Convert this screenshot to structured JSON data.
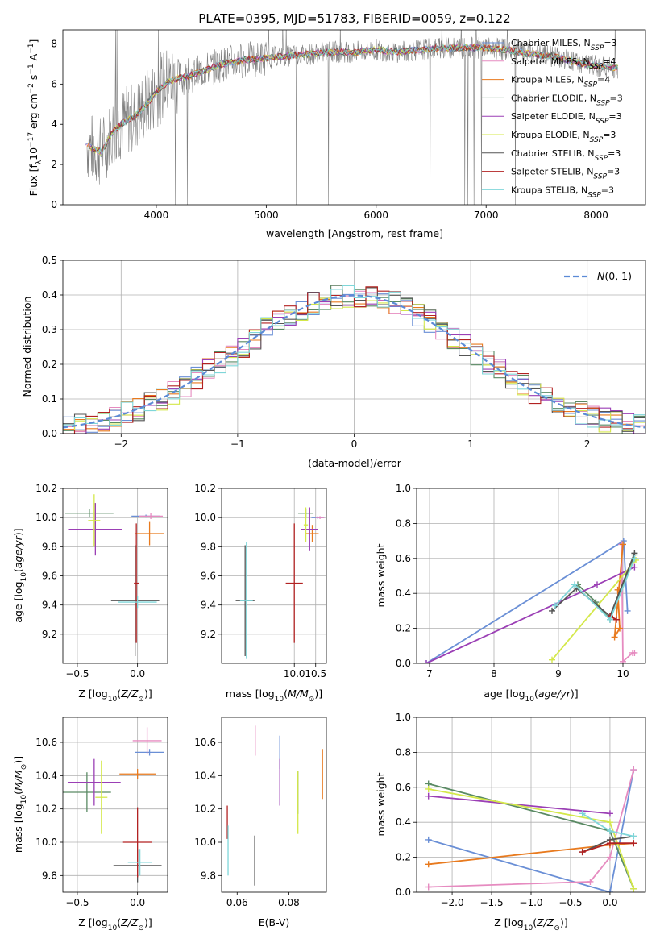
{
  "figure": {
    "title": "PLATE=0395, MJD=51783, FIBERID=0059, z=0.122"
  },
  "colors": {
    "Chabrier MILES": "#6a8fd6",
    "Salpeter MILES": "#e68bc0",
    "Kroupa MILES": "#e87a1e",
    "Chabrier ELODIE": "#5a8a64",
    "Salpeter ELODIE": "#9b3fb5",
    "Kroupa ELODIE": "#d4e84a",
    "Chabrier STELIB": "#555555",
    "Salpeter STELIB": "#b22222",
    "Kroupa STELIB": "#7fd6d9",
    "gaussian": "#5b8ad6",
    "data": "#808080"
  },
  "chart_data": [
    {
      "type": "line",
      "name": "spectrum",
      "xlabel": "wavelength [Angstrom, rest frame]",
      "ylabel": "Flux [f_λ 10^-17 erg cm^-2 s^-1 A^-1]",
      "xlim": [
        3150,
        8450
      ],
      "ylim": [
        0,
        8.7
      ],
      "xticks": [
        4000,
        5000,
        6000,
        7000,
        8000
      ],
      "yticks": [
        0,
        2,
        4,
        6,
        8
      ],
      "grid": false,
      "legend_position": "top-right",
      "continuum_x": [
        3350,
        3500,
        3600,
        3700,
        3800,
        3900,
        4000,
        4100,
        4200,
        4300,
        4400,
        4500,
        4600,
        4800,
        5000,
        5200,
        5400,
        5600,
        5800,
        6000,
        6200,
        6400,
        6600,
        6800,
        7000,
        7200,
        7400,
        7600,
        7800,
        8000,
        8200
      ],
      "continuum_y": [
        3.0,
        2.6,
        3.6,
        4.1,
        4.4,
        4.9,
        5.6,
        6.1,
        6.3,
        6.4,
        6.6,
        6.8,
        7.0,
        7.2,
        7.3,
        7.4,
        7.5,
        7.6,
        7.6,
        7.7,
        7.6,
        7.7,
        7.8,
        7.8,
        7.8,
        7.7,
        7.5,
        7.4,
        7.1,
        6.9,
        6.8
      ],
      "series": [
        {
          "name": "Chabrier MILES",
          "nssp": "3"
        },
        {
          "name": "Salpeter MILES",
          "nssp": "4"
        },
        {
          "name": "Kroupa MILES",
          "nssp": "4"
        },
        {
          "name": "Chabrier ELODIE",
          "nssp": "3"
        },
        {
          "name": "Salpeter ELODIE",
          "nssp": "3"
        },
        {
          "name": "Kroupa ELODIE",
          "nssp": "3"
        },
        {
          "name": "Chabrier STELIB",
          "nssp": "3"
        },
        {
          "name": "Salpeter STELIB",
          "nssp": "3"
        },
        {
          "name": "Kroupa STELIB",
          "nssp": "3"
        }
      ]
    },
    {
      "type": "histogram",
      "name": "residuals",
      "xlabel": "(data-model)/error",
      "ylabel": "Normed distribution",
      "xlim": [
        -2.5,
        2.5
      ],
      "ylim": [
        0,
        0.5
      ],
      "xticks": [
        -2,
        -1,
        0,
        1,
        2
      ],
      "yticks": [
        0.0,
        0.1,
        0.2,
        0.3,
        0.4,
        0.5
      ],
      "grid": true,
      "legend": "N(0,1)",
      "legend_position": "top-right",
      "bin_width": 0.1
    },
    {
      "type": "errorbar",
      "name": "age_vs_Z",
      "xlabel": "Z [log10(Z/Z⊙)]",
      "ylabel": "age [log10(age/yr)]",
      "xlim": [
        -0.62,
        0.25
      ],
      "ylim": [
        9.0,
        10.2
      ],
      "xticks": [
        -0.5,
        0.0
      ],
      "yticks": [
        9.2,
        9.4,
        9.6,
        9.8,
        10.0,
        10.2
      ],
      "points": [
        {
          "series": "Chabrier MILES",
          "x": 0.07,
          "y": 10.01,
          "xerr": 0.12,
          "yerr": 0.01
        },
        {
          "series": "Salpeter MILES",
          "x": 0.11,
          "y": 10.01,
          "xerr": 0.1,
          "yerr": 0.02
        },
        {
          "series": "Kroupa MILES",
          "x": 0.1,
          "y": 9.89,
          "xerr": 0.12,
          "yerr": 0.08
        },
        {
          "series": "Chabrier ELODIE",
          "x": -0.4,
          "y": 10.03,
          "xerr": 0.2,
          "yerr": 0.03
        },
        {
          "series": "Salpeter ELODIE",
          "x": -0.35,
          "y": 9.92,
          "xerr": 0.22,
          "yerr": 0.18
        },
        {
          "series": "Kroupa ELODIE",
          "x": -0.36,
          "y": 9.98,
          "xerr": 0.05,
          "yerr": 0.18
        },
        {
          "series": "Chabrier STELIB",
          "x": -0.02,
          "y": 9.43,
          "xerr": 0.2,
          "yerr": 0.38
        },
        {
          "series": "Salpeter STELIB",
          "x": -0.01,
          "y": 9.55,
          "xerr": 0.02,
          "yerr": 0.41
        },
        {
          "series": "Kroupa STELIB",
          "x": 0.0,
          "y": 9.42,
          "xerr": 0.16,
          "yerr": 0.04
        }
      ]
    },
    {
      "type": "errorbar",
      "name": "age_vs_mass",
      "xlabel": "mass [log10(M/M⊙)]",
      "ylabel": "",
      "xlim": [
        8.3,
        10.75
      ],
      "ylim": [
        9.0,
        10.2
      ],
      "xticks": [
        10.0,
        10.5
      ],
      "yticks": [
        9.2,
        9.4,
        9.6,
        9.8,
        10.0,
        10.2
      ],
      "points": [
        {
          "series": "Chabrier MILES",
          "x": 10.55,
          "y": 10.0,
          "xerr": 0.15,
          "yerr": 0.01
        },
        {
          "series": "Salpeter MILES",
          "x": 10.6,
          "y": 10.0,
          "xerr": 0.1,
          "yerr": 0.01
        },
        {
          "series": "Kroupa MILES",
          "x": 10.42,
          "y": 9.89,
          "xerr": 0.15,
          "yerr": 0.06
        },
        {
          "series": "Chabrier ELODIE",
          "x": 10.27,
          "y": 10.03,
          "xerr": 0.18,
          "yerr": 0.03
        },
        {
          "series": "Salpeter ELODIE",
          "x": 10.36,
          "y": 9.92,
          "xerr": 0.2,
          "yerr": 0.15
        },
        {
          "series": "Kroupa ELODIE",
          "x": 10.27,
          "y": 9.95,
          "xerr": 0.05,
          "yerr": 0.12
        },
        {
          "series": "Chabrier STELIB",
          "x": 8.85,
          "y": 9.43,
          "xerr": 0.22,
          "yerr": 0.38
        },
        {
          "series": "Salpeter STELIB",
          "x": 10.0,
          "y": 9.55,
          "xerr": 0.2,
          "yerr": 0.41
        },
        {
          "series": "Kroupa STELIB",
          "x": 8.88,
          "y": 9.43,
          "xerr": 0.15,
          "yerr": 0.4
        }
      ]
    },
    {
      "type": "line",
      "name": "mass_weight_vs_age",
      "xlabel": "age [log10(age/yr)]",
      "ylabel": "mass weight",
      "xlim": [
        6.8,
        10.35
      ],
      "ylim": [
        0,
        1.0
      ],
      "xticks": [
        7,
        8,
        9,
        10
      ],
      "yticks": [
        0.0,
        0.2,
        0.4,
        0.6,
        0.8,
        1.0
      ],
      "grid": true,
      "series": [
        {
          "name": "Chabrier MILES",
          "x": [
            6.95,
            10.01,
            10.07
          ],
          "y": [
            0.0,
            0.7,
            0.3
          ]
        },
        {
          "name": "Salpeter MILES",
          "x": [
            9.98,
            10.0,
            10.15,
            10.18
          ],
          "y": [
            0.68,
            0.01,
            0.06,
            0.06
          ]
        },
        {
          "name": "Kroupa MILES",
          "x": [
            9.92,
            9.95,
            9.87,
            10.0
          ],
          "y": [
            0.42,
            0.2,
            0.15,
            0.68
          ]
        },
        {
          "name": "Chabrier ELODIE",
          "x": [
            9.3,
            9.58,
            9.8,
            10.18
          ],
          "y": [
            0.45,
            0.35,
            0.25,
            0.62
          ]
        },
        {
          "name": "Salpeter ELODIE",
          "x": [
            6.95,
            9.6,
            10.18
          ],
          "y": [
            0.0,
            0.45,
            0.55
          ]
        },
        {
          "name": "Kroupa ELODIE",
          "x": [
            8.9,
            10.2
          ],
          "y": [
            0.02,
            0.59
          ]
        },
        {
          "name": "Chabrier STELIB",
          "x": [
            8.9,
            9.28,
            9.8,
            10.18
          ],
          "y": [
            0.3,
            0.43,
            0.27,
            0.63
          ]
        },
        {
          "name": "Salpeter STELIB",
          "x": [
            9.8,
            9.9
          ],
          "y": [
            0.27,
            0.25
          ]
        },
        {
          "name": "Kroupa STELIB",
          "x": [
            8.95,
            9.25,
            9.8,
            10.18
          ],
          "y": [
            0.33,
            0.45,
            0.25,
            0.6
          ]
        }
      ]
    },
    {
      "type": "errorbar",
      "name": "mass_vs_Z",
      "xlabel": "Z [log10(Z/Z⊙)]",
      "ylabel": "mass [log10(M/M⊙)]",
      "xlim": [
        -0.62,
        0.25
      ],
      "ylim": [
        9.7,
        10.75
      ],
      "xticks": [
        -0.5,
        0.0
      ],
      "yticks": [
        9.8,
        10.0,
        10.2,
        10.4,
        10.6
      ],
      "points": [
        {
          "series": "Chabrier MILES",
          "x": 0.1,
          "y": 10.54,
          "xerr": 0.12,
          "yerr": 0.02
        },
        {
          "series": "Salpeter MILES",
          "x": 0.08,
          "y": 10.61,
          "xerr": 0.12,
          "yerr": 0.08
        },
        {
          "series": "Kroupa MILES",
          "x": 0.0,
          "y": 10.41,
          "xerr": 0.15,
          "yerr": 0.03
        },
        {
          "series": "Chabrier ELODIE",
          "x": -0.42,
          "y": 10.3,
          "xerr": 0.2,
          "yerr": 0.12
        },
        {
          "series": "Salpeter ELODIE",
          "x": -0.36,
          "y": 10.36,
          "xerr": 0.22,
          "yerr": 0.14
        },
        {
          "series": "Kroupa ELODIE",
          "x": -0.3,
          "y": 10.27,
          "xerr": 0.05,
          "yerr": 0.22
        },
        {
          "series": "Chabrier STELIB",
          "x": 0.0,
          "y": 9.86,
          "xerr": 0.2,
          "yerr": 0.1
        },
        {
          "series": "Salpeter STELIB",
          "x": 0.0,
          "y": 10.0,
          "xerr": 0.12,
          "yerr": 0.21
        },
        {
          "series": "Kroupa STELIB",
          "x": 0.02,
          "y": 9.88,
          "xerr": 0.1,
          "yerr": 0.08
        }
      ]
    },
    {
      "type": "errorbar",
      "name": "mass_vs_EBV",
      "xlabel": "E(B-V)",
      "ylabel": "",
      "xlim": [
        0.054,
        0.0945
      ],
      "ylim": [
        9.7,
        10.75
      ],
      "xticks": [
        0.06,
        0.08
      ],
      "yticks": [
        9.8,
        10.0,
        10.2,
        10.4,
        10.6
      ],
      "points": [
        {
          "series": "Chabrier MILES",
          "x": 0.0765,
          "y": 10.54,
          "yerr": 0.1
        },
        {
          "series": "Salpeter MILES",
          "x": 0.067,
          "y": 10.61,
          "yerr": 0.09
        },
        {
          "series": "Kroupa MILES",
          "x": 0.093,
          "y": 10.41,
          "yerr": 0.15
        },
        {
          "series": "Chabrier ELODIE",
          "x": 0.0835,
          "y": 10.3,
          "yerr": 0.13
        },
        {
          "series": "Salpeter ELODIE",
          "x": 0.0765,
          "y": 10.36,
          "yerr": 0.14
        },
        {
          "series": "Kroupa ELODIE",
          "x": 0.0835,
          "y": 10.24,
          "yerr": 0.19
        },
        {
          "series": "Chabrier STELIB",
          "x": 0.0668,
          "y": 9.89,
          "yerr": 0.15
        },
        {
          "series": "Salpeter STELIB",
          "x": 0.0562,
          "y": 10.12,
          "yerr": 0.1
        },
        {
          "series": "Kroupa STELIB",
          "x": 0.0565,
          "y": 9.95,
          "yerr": 0.15
        }
      ]
    },
    {
      "type": "line",
      "name": "mass_weight_vs_Z",
      "xlabel": "Z [log10(Z/Z⊙)]",
      "ylabel": "mass weight",
      "xlim": [
        -2.45,
        0.45
      ],
      "ylim": [
        0,
        1.0
      ],
      "xticks": [
        -2.0,
        -1.5,
        -1.0,
        -0.5,
        0.0
      ],
      "yticks": [
        0.0,
        0.2,
        0.4,
        0.6,
        0.8,
        1.0
      ],
      "grid": true,
      "series": [
        {
          "name": "Chabrier MILES",
          "x": [
            -2.3,
            0.0,
            0.3
          ],
          "y": [
            0.3,
            0.0,
            0.7
          ]
        },
        {
          "name": "Salpeter MILES",
          "x": [
            -2.3,
            -0.25,
            0.0,
            0.3
          ],
          "y": [
            0.03,
            0.06,
            0.2,
            0.7
          ]
        },
        {
          "name": "Kroupa MILES",
          "x": [
            -2.3,
            0.0,
            0.3
          ],
          "y": [
            0.16,
            0.27,
            0.28
          ]
        },
        {
          "name": "Chabrier ELODIE",
          "x": [
            -2.3,
            0.0,
            0.3
          ],
          "y": [
            0.62,
            0.35,
            0.02
          ]
        },
        {
          "name": "Salpeter ELODIE",
          "x": [
            -2.3,
            0.0
          ],
          "y": [
            0.55,
            0.45
          ]
        },
        {
          "name": "Kroupa ELODIE",
          "x": [
            -2.3,
            0.0,
            0.3
          ],
          "y": [
            0.59,
            0.4,
            0.02
          ]
        },
        {
          "name": "Chabrier STELIB",
          "x": [
            -0.35,
            0.0,
            0.3
          ],
          "y": [
            0.23,
            0.3,
            0.32
          ]
        },
        {
          "name": "Salpeter STELIB",
          "x": [
            -0.35,
            0.0,
            0.3
          ],
          "y": [
            0.23,
            0.28,
            0.28
          ]
        },
        {
          "name": "Kroupa STELIB",
          "x": [
            -0.35,
            0.0,
            0.3
          ],
          "y": [
            0.45,
            0.35,
            0.32
          ]
        }
      ]
    }
  ]
}
